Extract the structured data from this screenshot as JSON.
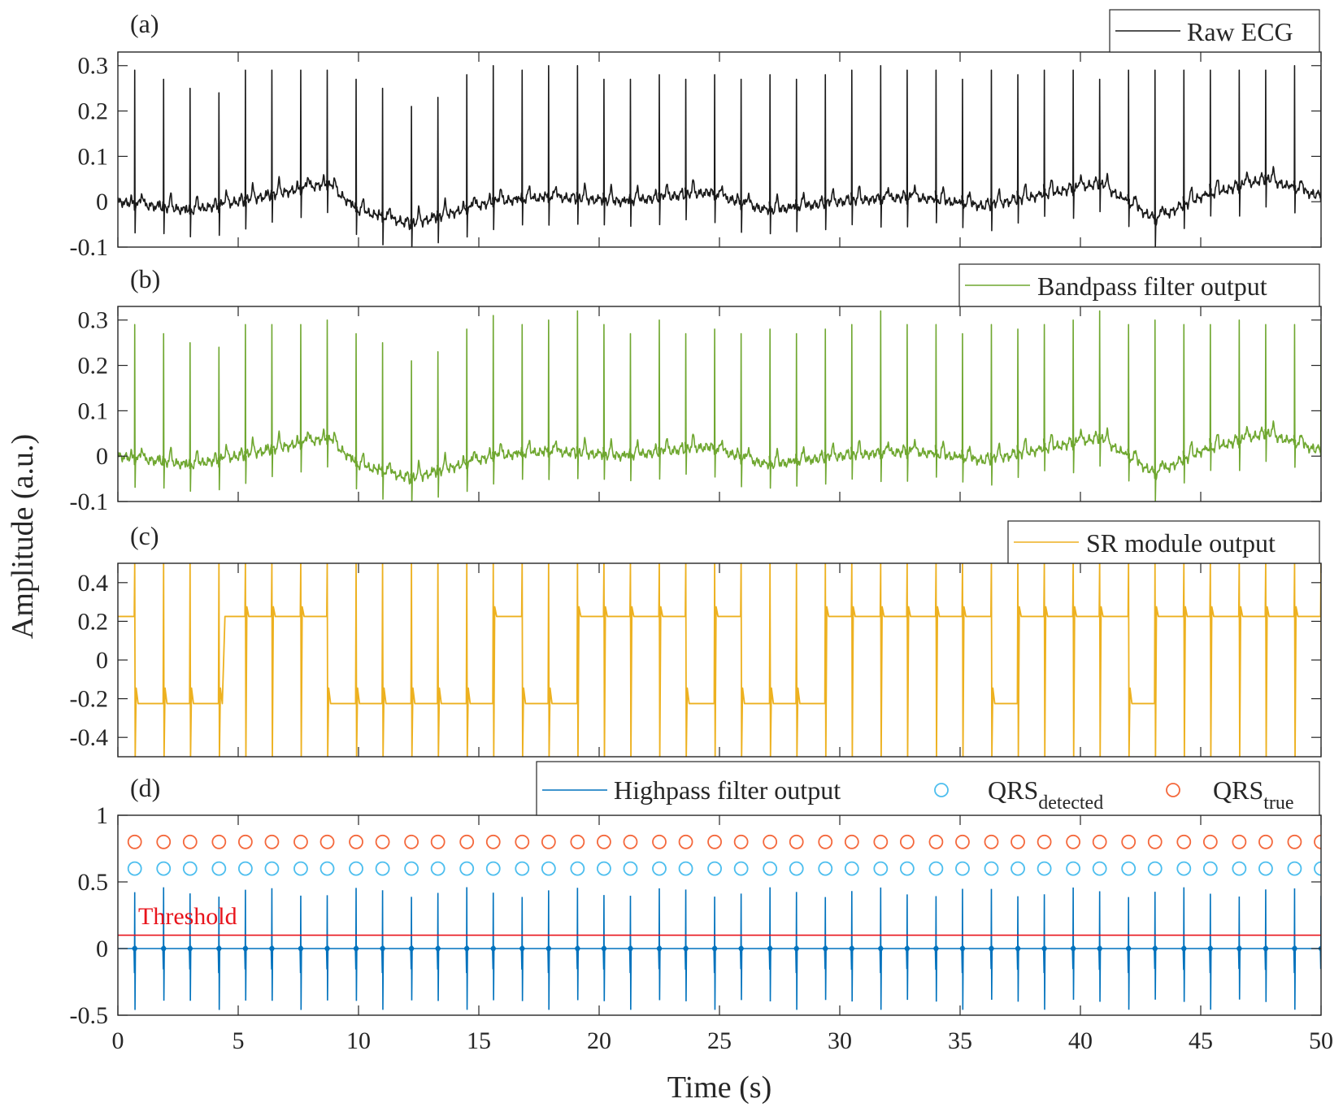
{
  "chart_data": {
    "type": "line",
    "ylabel": "Amplitude (a.u.)",
    "xlabel": "Time (s)",
    "xlim": [
      0,
      50
    ],
    "xticks": [
      0,
      5,
      10,
      15,
      20,
      25,
      30,
      35,
      40,
      45,
      50
    ],
    "xtick_labels": [
      "0",
      "5",
      "10",
      "15",
      "20",
      "25",
      "30",
      "35",
      "40",
      "45",
      "50"
    ],
    "r_peak_times": [
      0.7,
      1.9,
      3.0,
      4.2,
      5.3,
      6.4,
      7.6,
      8.7,
      9.9,
      11.0,
      12.2,
      13.3,
      14.5,
      15.6,
      16.8,
      17.9,
      19.1,
      20.2,
      21.3,
      22.5,
      23.6,
      24.8,
      25.9,
      27.1,
      28.2,
      29.4,
      30.5,
      31.7,
      32.8,
      34.0,
      35.1,
      36.3,
      37.4,
      38.5,
      39.7,
      40.8,
      42.0,
      43.1,
      44.3,
      45.4,
      46.6,
      47.7,
      48.9,
      50.0
    ],
    "panels": [
      {
        "tag": "(a)",
        "ylim": [
          -0.1,
          0.33
        ],
        "yticks": [
          -0.1,
          0,
          0.1,
          0.2,
          0.3
        ],
        "ytick_labels": [
          "-0.1",
          "0",
          "0.1",
          "0.2",
          "0.3"
        ],
        "series": [
          {
            "name": "Raw ECG",
            "color": "#1a1a1a",
            "r_peak_amplitudes": [
              0.29,
              0.27,
              0.25,
              0.24,
              0.29,
              0.29,
              0.29,
              0.29,
              0.27,
              0.25,
              0.21,
              0.23,
              0.28,
              0.3,
              0.29,
              0.3,
              0.3,
              0.27,
              0.27,
              0.28,
              0.27,
              0.28,
              0.27,
              0.28,
              0.27,
              0.28,
              0.29,
              0.3,
              0.29,
              0.29,
              0.27,
              0.29,
              0.28,
              0.29,
              0.29,
              0.27,
              0.29,
              0.29,
              0.29,
              0.29,
              0.29,
              0.29,
              0.3,
              0.29
            ],
            "baseline_knots_t": [
              0,
              3,
              6,
              8.7,
              10,
              12.2,
              15.6,
              18,
              21,
              24.5,
              27,
              30,
              33,
              36,
              38,
              40.8,
              43.1,
              45,
              47.7,
              50
            ],
            "baseline_knots_y": [
              0.0,
              -0.02,
              0.01,
              0.04,
              -0.02,
              -0.05,
              0.0,
              0.01,
              0.0,
              0.02,
              -0.02,
              0.0,
              0.01,
              -0.01,
              0.01,
              0.04,
              -0.04,
              0.01,
              0.05,
              0.01
            ]
          }
        ]
      },
      {
        "tag": "(b)",
        "ylim": [
          -0.1,
          0.33
        ],
        "yticks": [
          -0.1,
          0,
          0.1,
          0.2,
          0.3
        ],
        "ytick_labels": [
          "-0.1",
          "0",
          "0.1",
          "0.2",
          "0.3"
        ],
        "series": [
          {
            "name": "Bandpass filter output",
            "color": "#6fa730",
            "r_peak_amplitudes": [
              0.29,
              0.27,
              0.25,
              0.24,
              0.29,
              0.29,
              0.29,
              0.3,
              0.27,
              0.25,
              0.21,
              0.23,
              0.28,
              0.31,
              0.29,
              0.3,
              0.32,
              0.29,
              0.27,
              0.3,
              0.27,
              0.28,
              0.27,
              0.28,
              0.27,
              0.28,
              0.29,
              0.32,
              0.29,
              0.29,
              0.27,
              0.29,
              0.28,
              0.29,
              0.3,
              0.32,
              0.29,
              0.3,
              0.29,
              0.29,
              0.3,
              0.29,
              0.29,
              0.29
            ],
            "baseline_knots_t": [
              0,
              3,
              6,
              8.7,
              10,
              12.2,
              15.6,
              18,
              21,
              24.5,
              27,
              30,
              33,
              36,
              38,
              40.8,
              43.1,
              45,
              47.7,
              50
            ],
            "baseline_knots_y": [
              0.0,
              -0.02,
              0.01,
              0.04,
              -0.02,
              -0.05,
              0.0,
              0.01,
              0.0,
              0.02,
              -0.02,
              0.0,
              0.01,
              -0.01,
              0.01,
              0.04,
              -0.04,
              0.01,
              0.05,
              0.01
            ]
          }
        ]
      },
      {
        "tag": "(c)",
        "ylim": [
          -0.5,
          0.5
        ],
        "yticks": [
          -0.4,
          -0.2,
          0,
          0.2,
          0.4
        ],
        "ytick_labels": [
          "-0.4",
          "-0.2",
          "0",
          "0.2",
          "0.4"
        ],
        "series": [
          {
            "name": "SR module output",
            "color": "#edb120",
            "high_level": 0.225,
            "low_level": -0.225,
            "state_times": [
              0,
              0.7,
              4.3,
              8.7,
              15.6,
              16.8,
              19.1,
              23.6,
              24.8,
              25.9,
              29.4,
              31.7,
              36.3,
              37.4,
              42.0,
              43.1,
              50
            ],
            "states": [
              1,
              -1,
              1,
              -1,
              1,
              -1,
              1,
              -1,
              1,
              -1,
              1,
              1,
              -1,
              1,
              -1,
              1
            ]
          }
        ]
      },
      {
        "tag": "(d)",
        "ylim": [
          -0.5,
          1.0
        ],
        "yticks": [
          -0.5,
          0,
          0.5,
          1
        ],
        "ytick_labels": [
          "-0.5",
          "0",
          "0.5",
          "1"
        ],
        "threshold": {
          "label": "Threshold",
          "value": 0.1,
          "color": "#e8141c"
        },
        "series": [
          {
            "name": "Highpass filter output",
            "color": "#0072bd",
            "spike_up": 0.46,
            "spike_down": -0.46
          },
          {
            "name": "QRS",
            "subscript": "detected",
            "color": "#4dbeee",
            "marker": "circle",
            "y": 0.6
          },
          {
            "name": "QRS",
            "subscript": "true",
            "color": "#f4683c",
            "marker": "circle",
            "y": 0.8
          }
        ]
      }
    ]
  }
}
